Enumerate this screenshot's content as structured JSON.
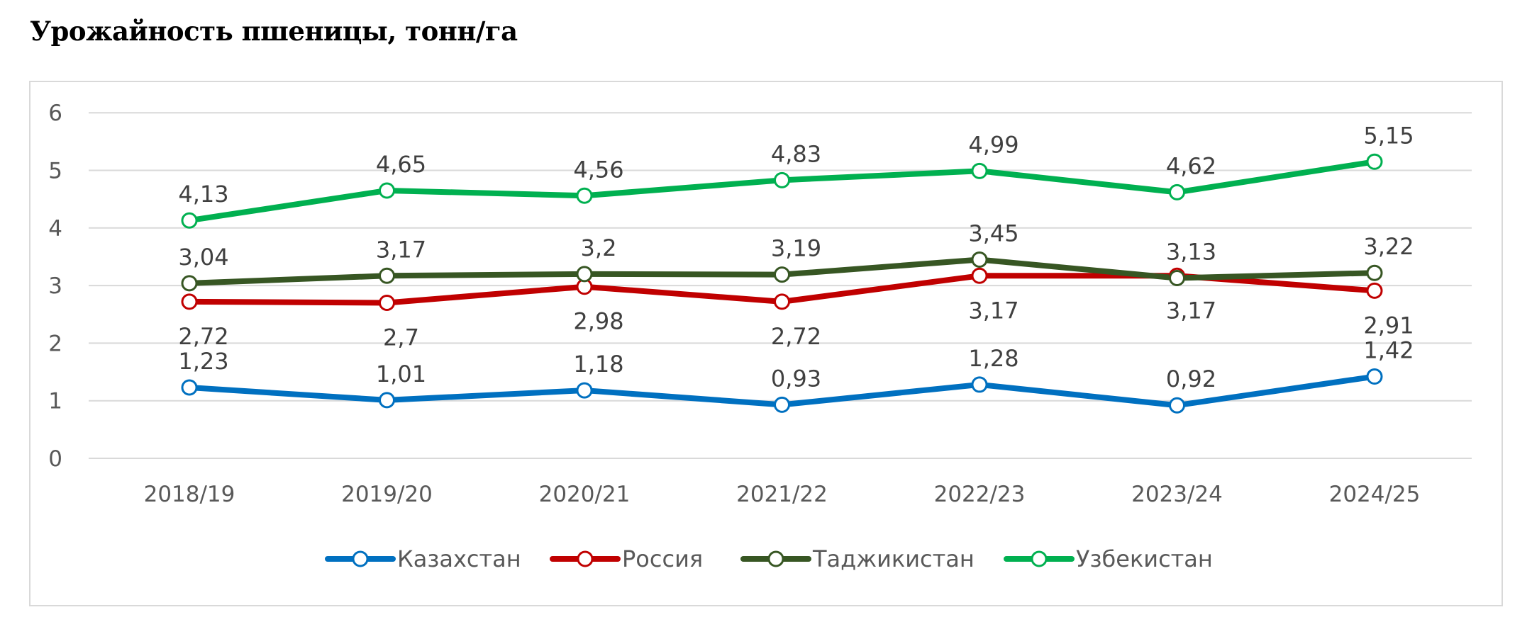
{
  "title": "Урожайность пшеницы, тонн/га",
  "chart_data": {
    "type": "line",
    "categories": [
      "2018/19",
      "2019/20",
      "2020/21",
      "2021/22",
      "2022/23",
      "2023/24",
      "2024/25"
    ],
    "ylim": [
      0,
      6
    ],
    "yticks": [
      "0",
      "1",
      "2",
      "3",
      "4",
      "5",
      "6"
    ],
    "grid": true,
    "legend_position": "bottom",
    "series": [
      {
        "name": "Казахстан",
        "color": "#0070C0",
        "values": [
          1.23,
          1.01,
          1.18,
          0.93,
          1.28,
          0.92,
          1.42
        ],
        "labels": [
          "1,23",
          "1,01",
          "1,18",
          "0,93",
          "1,28",
          "0,92",
          "1,42"
        ]
      },
      {
        "name": "Россия",
        "color": "#C00000",
        "values": [
          2.72,
          2.7,
          2.98,
          2.72,
          3.17,
          3.17,
          2.91
        ],
        "labels": [
          "2,72",
          "2,7",
          "2,98",
          "2,72",
          "3,17",
          "3,17",
          "2,91"
        ]
      },
      {
        "name": "Таджикистан",
        "color": "#375623",
        "values": [
          3.04,
          3.17,
          3.2,
          3.19,
          3.45,
          3.13,
          3.22
        ],
        "labels": [
          "3,04",
          "3,17",
          "3,2",
          "3,19",
          "3,45",
          "3,13",
          "3,22"
        ]
      },
      {
        "name": "Узбекистан",
        "color": "#00B050",
        "values": [
          4.13,
          4.65,
          4.56,
          4.83,
          4.99,
          4.62,
          5.15
        ],
        "labels": [
          "4,13",
          "4,65",
          "4,56",
          "4,83",
          "4,99",
          "4,62",
          "5,15"
        ]
      }
    ]
  }
}
